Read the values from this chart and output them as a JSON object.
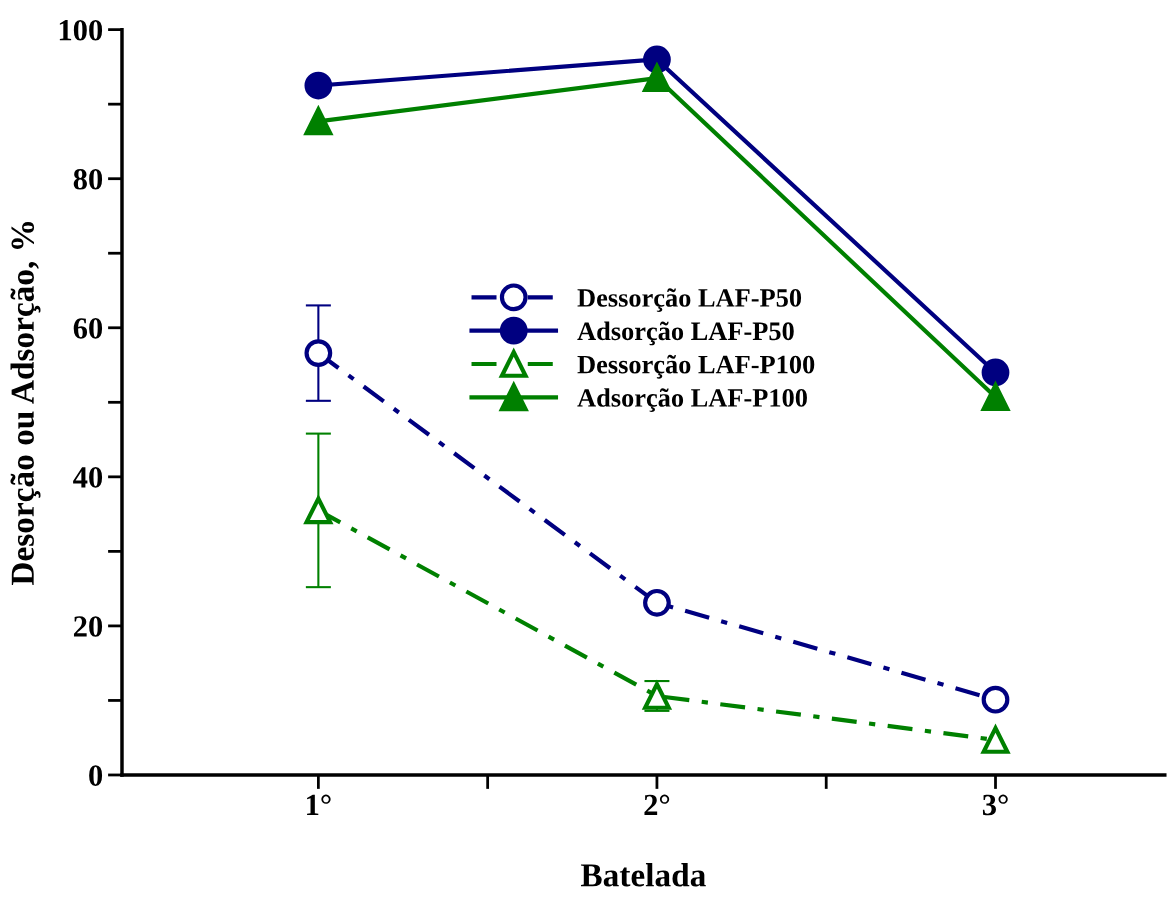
{
  "chart_data": {
    "type": "line",
    "xlabel": "Batelada",
    "ylabel": "Desorção ou Adsorção, %",
    "x": [
      1,
      2,
      3
    ],
    "xlim": [
      0.42,
      3.5
    ],
    "xticks": [
      {
        "value": 1,
        "label": "1°"
      },
      {
        "value": 1.5,
        "label": null
      },
      {
        "value": 2,
        "label": "2°"
      },
      {
        "value": 2.5,
        "label": null
      },
      {
        "value": 3,
        "label": "3°"
      }
    ],
    "ylim": [
      0,
      100
    ],
    "yticks": [
      0,
      {
        "value": 10,
        "label": null
      },
      20,
      {
        "value": 30,
        "label": null
      },
      40,
      {
        "value": 50,
        "label": null
      },
      60,
      {
        "value": 70,
        "label": null
      },
      80,
      {
        "value": 90,
        "label": null
      },
      100
    ],
    "grid": false,
    "legend": "center",
    "series": [
      {
        "name": "Dessorção LAF-P50",
        "color": "#000080",
        "values": [
          56.6,
          23.1,
          10.1
        ],
        "errors": [
          6.4,
          null,
          null
        ],
        "marker": "circle",
        "line_style": "dashdot"
      },
      {
        "name": "Adsorção LAF-P50",
        "color": "#000080",
        "values": [
          92.5,
          96.0,
          54.0
        ],
        "marker": "circle",
        "line_style": "solid"
      },
      {
        "name": "Dessorção LAF-P100",
        "color": "#008000",
        "values": [
          35.5,
          10.6,
          4.7
        ],
        "errors": [
          10.3,
          2.0,
          null
        ],
        "marker": "triangle",
        "line_style": "dashdot"
      },
      {
        "name": "Adsorção LAF-P100",
        "color": "#008000",
        "values": [
          87.7,
          93.5,
          50.7
        ],
        "marker": "triangle",
        "line_style": "solid"
      }
    ]
  }
}
